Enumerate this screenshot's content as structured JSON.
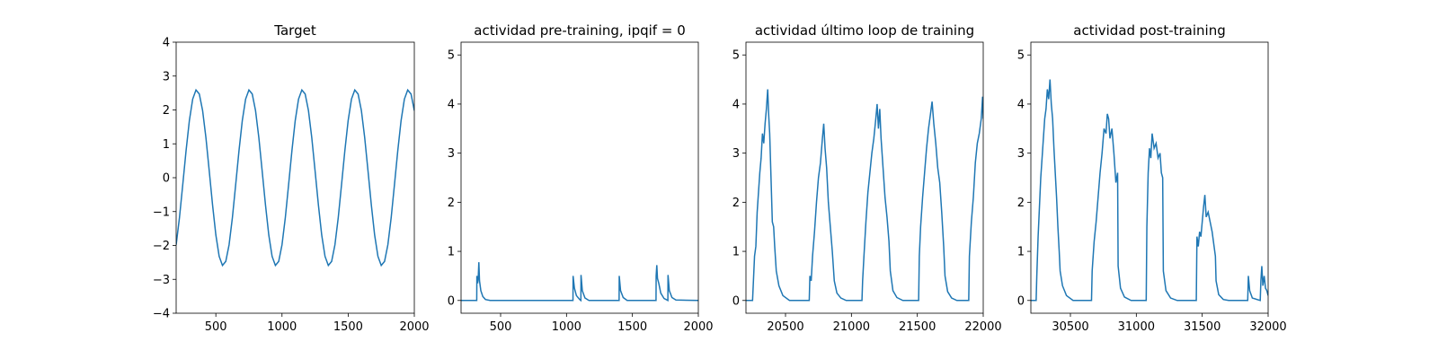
{
  "chart_data": [
    {
      "type": "line",
      "title": "Target",
      "color": "#1f77b4",
      "xlim": [
        200,
        2000
      ],
      "xticks": [
        500,
        1000,
        1500,
        2000
      ],
      "ylim": [
        -4,
        4
      ],
      "yticks": [
        {
          "value": -4,
          "label": "−4"
        },
        {
          "value": -3,
          "label": "−3"
        },
        {
          "value": -2,
          "label": "−2"
        },
        {
          "value": -1,
          "label": "−1"
        },
        0,
        1,
        2,
        3,
        4
      ],
      "x": [
        200,
        225,
        250,
        275,
        300,
        325,
        350,
        375,
        400,
        425,
        450,
        475,
        500,
        525,
        550,
        575,
        600,
        625,
        650,
        675,
        700,
        725,
        750,
        775,
        800,
        825,
        850,
        875,
        900,
        925,
        950,
        975,
        1000,
        1025,
        1050,
        1075,
        1100,
        1125,
        1150,
        1175,
        1200,
        1225,
        1250,
        1275,
        1300,
        1325,
        1350,
        1375,
        1400,
        1425,
        1450,
        1475,
        1500,
        1525,
        1550,
        1575,
        1600,
        1625,
        1650,
        1675,
        1700,
        1725,
        1750,
        1775,
        1800,
        1825,
        1850,
        1875,
        1900,
        1925,
        1950,
        1975,
        2000
      ],
      "values": [
        -1.98,
        -1.18,
        -0.2,
        0.8,
        1.69,
        2.32,
        2.59,
        2.47,
        1.98,
        1.18,
        0.2,
        -0.8,
        -1.69,
        -2.32,
        -2.59,
        -2.47,
        -1.98,
        -1.18,
        -0.2,
        0.8,
        1.69,
        2.32,
        2.59,
        2.47,
        1.98,
        1.18,
        0.2,
        -0.8,
        -1.69,
        -2.32,
        -2.59,
        -2.47,
        -1.98,
        -1.18,
        -0.2,
        0.8,
        1.69,
        2.32,
        2.59,
        2.47,
        1.98,
        1.18,
        0.2,
        -0.8,
        -1.69,
        -2.32,
        -2.59,
        -2.47,
        -1.98,
        -1.18,
        -0.2,
        0.8,
        1.69,
        2.32,
        2.59,
        2.47,
        1.98,
        1.18,
        0.2,
        -0.8,
        -1.69,
        -2.32,
        -2.59,
        -2.47,
        -1.98,
        -1.18,
        -0.2,
        0.8,
        1.69,
        2.32,
        2.59,
        2.47,
        1.98
      ]
    },
    {
      "type": "line",
      "title": "actividad pre-training, ipqif = 0",
      "color": "#1f77b4",
      "xlim": [
        200,
        2000
      ],
      "xticks": [
        500,
        1000,
        1500,
        2000
      ],
      "ylim": [
        -0.26,
        5.26
      ],
      "yticks": [
        0,
        1,
        2,
        3,
        4,
        5
      ],
      "x": [
        200,
        319,
        320,
        326,
        330,
        335,
        340,
        350,
        365,
        385,
        420,
        1049,
        1050,
        1060,
        1075,
        1100,
        1109,
        1110,
        1120,
        1140,
        1170,
        1399,
        1400,
        1410,
        1430,
        1460,
        1679,
        1680,
        1685,
        1690,
        1700,
        1715,
        1740,
        1769,
        1770,
        1780,
        1800,
        1830,
        2000
      ],
      "values": [
        0,
        0,
        0.5,
        0.35,
        0.45,
        0.78,
        0.4,
        0.2,
        0.08,
        0.02,
        0,
        0,
        0.5,
        0.25,
        0.1,
        0.02,
        0,
        0.52,
        0.2,
        0.05,
        0,
        0,
        0.5,
        0.2,
        0.06,
        0,
        0,
        0.5,
        0.72,
        0.45,
        0.35,
        0.15,
        0.04,
        0,
        0.52,
        0.2,
        0.06,
        0.01,
        0
      ]
    },
    {
      "type": "line",
      "title": "actividad último loop de training",
      "color": "#1f77b4",
      "xlim": [
        20200,
        22000
      ],
      "xticks": [
        20500,
        21000,
        21500,
        22000
      ],
      "ylim": [
        -0.26,
        5.26
      ],
      "yticks": [
        0,
        1,
        2,
        3,
        4,
        5
      ],
      "x": [
        20200,
        20250,
        20255,
        20265,
        20275,
        20285,
        20295,
        20305,
        20315,
        20325,
        20335,
        20345,
        20355,
        20365,
        20372,
        20380,
        20390,
        20400,
        20410,
        20418,
        20430,
        20450,
        20480,
        20530,
        20680,
        20685,
        20695,
        20705,
        20720,
        20735,
        20750,
        20765,
        20780,
        20790,
        20800,
        20812,
        20825,
        20840,
        20855,
        20870,
        20890,
        20920,
        20960,
        21080,
        21085,
        21095,
        21110,
        21125,
        21140,
        21155,
        21170,
        21185,
        21195,
        21205,
        21215,
        21225,
        21240,
        21255,
        21270,
        21285,
        21295,
        21315,
        21345,
        21390,
        21510,
        21515,
        21525,
        21540,
        21555,
        21570,
        21585,
        21600,
        21612,
        21625,
        21640,
        21655,
        21670,
        21685,
        21700,
        21710,
        21730,
        21760,
        21800,
        21890,
        21895,
        21910,
        21925,
        21940,
        21955,
        21970,
        21985,
        21995,
        22000
      ],
      "values": [
        0,
        0,
        0.3,
        0.9,
        1.1,
        1.8,
        2.2,
        2.6,
        2.9,
        3.4,
        3.2,
        3.6,
        3.9,
        4.3,
        3.8,
        3.4,
        2.5,
        1.6,
        1.5,
        1.1,
        0.6,
        0.3,
        0.1,
        0,
        0,
        0.5,
        0.4,
        0.9,
        1.4,
        2.0,
        2.5,
        2.8,
        3.3,
        3.6,
        3.1,
        2.7,
        2.0,
        1.5,
        1.0,
        0.4,
        0.15,
        0.05,
        0,
        0,
        0.4,
        0.9,
        1.6,
        2.2,
        2.6,
        3.0,
        3.3,
        3.7,
        4.0,
        3.5,
        3.9,
        3.3,
        2.7,
        2.1,
        1.7,
        1.2,
        0.6,
        0.2,
        0.06,
        0,
        0,
        0.9,
        1.5,
        2.1,
        2.6,
        3.1,
        3.5,
        3.8,
        4.05,
        3.6,
        3.2,
        2.7,
        2.4,
        1.8,
        1.1,
        0.5,
        0.18,
        0.05,
        0,
        0,
        0.9,
        1.6,
        2.1,
        2.8,
        3.2,
        3.4,
        3.7,
        4.15,
        3.7
      ]
    },
    {
      "type": "line",
      "title": "actividad post-training",
      "color": "#1f77b4",
      "xlim": [
        30200,
        32000
      ],
      "xticks": [
        30500,
        31000,
        31500,
        32000
      ],
      "ylim": [
        -0.26,
        5.26
      ],
      "yticks": [
        0,
        1,
        2,
        3,
        4,
        5
      ],
      "x": [
        30200,
        30240,
        30245,
        30255,
        30265,
        30275,
        30285,
        30295,
        30305,
        30315,
        30325,
        30335,
        30345,
        30355,
        30365,
        30375,
        30385,
        30395,
        30405,
        30415,
        30422,
        30440,
        30470,
        30520,
        30660,
        30665,
        30680,
        30695,
        30710,
        30725,
        30740,
        30755,
        30770,
        30780,
        30790,
        30800,
        30815,
        30830,
        30845,
        30858,
        30862,
        30880,
        30910,
        30960,
        31075,
        31080,
        31090,
        31100,
        31110,
        31120,
        31135,
        31150,
        31165,
        31180,
        31190,
        31200,
        31205,
        31225,
        31260,
        31310,
        31455,
        31460,
        31470,
        31480,
        31490,
        31500,
        31510,
        31520,
        31530,
        31545,
        31560,
        31575,
        31590,
        31600,
        31605,
        31625,
        31660,
        31700,
        31845,
        31850,
        31860,
        31880,
        31940,
        31945,
        31952,
        31960,
        31970,
        31980,
        31990,
        32000
      ],
      "values": [
        0,
        0,
        0.5,
        1.3,
        1.9,
        2.5,
        2.9,
        3.3,
        3.7,
        3.9,
        4.3,
        4.1,
        4.5,
        4.0,
        3.7,
        3.1,
        2.6,
        2.1,
        1.5,
        1.0,
        0.6,
        0.3,
        0.1,
        0,
        0,
        0.6,
        1.2,
        1.6,
        2.1,
        2.6,
        3.0,
        3.5,
        3.4,
        3.8,
        3.7,
        3.3,
        3.5,
        3.0,
        2.4,
        2.6,
        0.7,
        0.25,
        0.07,
        0,
        0,
        1.5,
        2.6,
        3.1,
        2.9,
        3.4,
        3.1,
        3.2,
        2.9,
        3.0,
        2.6,
        2.5,
        0.6,
        0.2,
        0.05,
        0,
        0,
        1.3,
        1.1,
        1.4,
        1.3,
        1.6,
        1.9,
        2.15,
        1.7,
        1.8,
        1.6,
        1.4,
        1.1,
        0.9,
        0.4,
        0.12,
        0.02,
        0,
        0,
        0.5,
        0.2,
        0.05,
        0,
        0.4,
        0.7,
        0.3,
        0.5,
        0.25,
        0.2,
        0.1
      ]
    }
  ]
}
